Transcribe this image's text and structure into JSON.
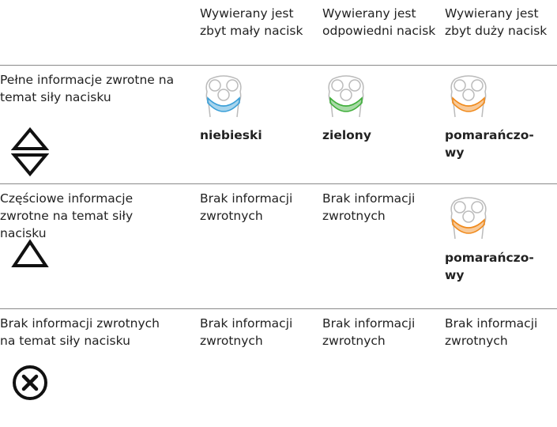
{
  "table": {
    "header": [
      "Wywierany jest zbyt mały nacisk",
      "Wywierany jest odpowiedni nacisk",
      "Wywierany jest zbyt duży nacisk"
    ],
    "rows": [
      {
        "label": "Pełne informacje zwrotne na temat siły nacisku",
        "cells": [
          "niebieski",
          "zielony",
          "pomarańczo-\nwy"
        ]
      },
      {
        "label": "Częściowe informacje zwrotne na temat siły nacisku",
        "cells": [
          "Brak informacji zwrotnych",
          "Brak informacji zwrotnych",
          "pomarańczo-\nwy"
        ]
      },
      {
        "label": "Brak informacji zwrotnych na temat siły nacisku",
        "cells": [
          "Brak informacji zwrotnych",
          "Brak informacji zwrotnych",
          "Brak informacji zwrotnych"
        ]
      }
    ]
  }
}
